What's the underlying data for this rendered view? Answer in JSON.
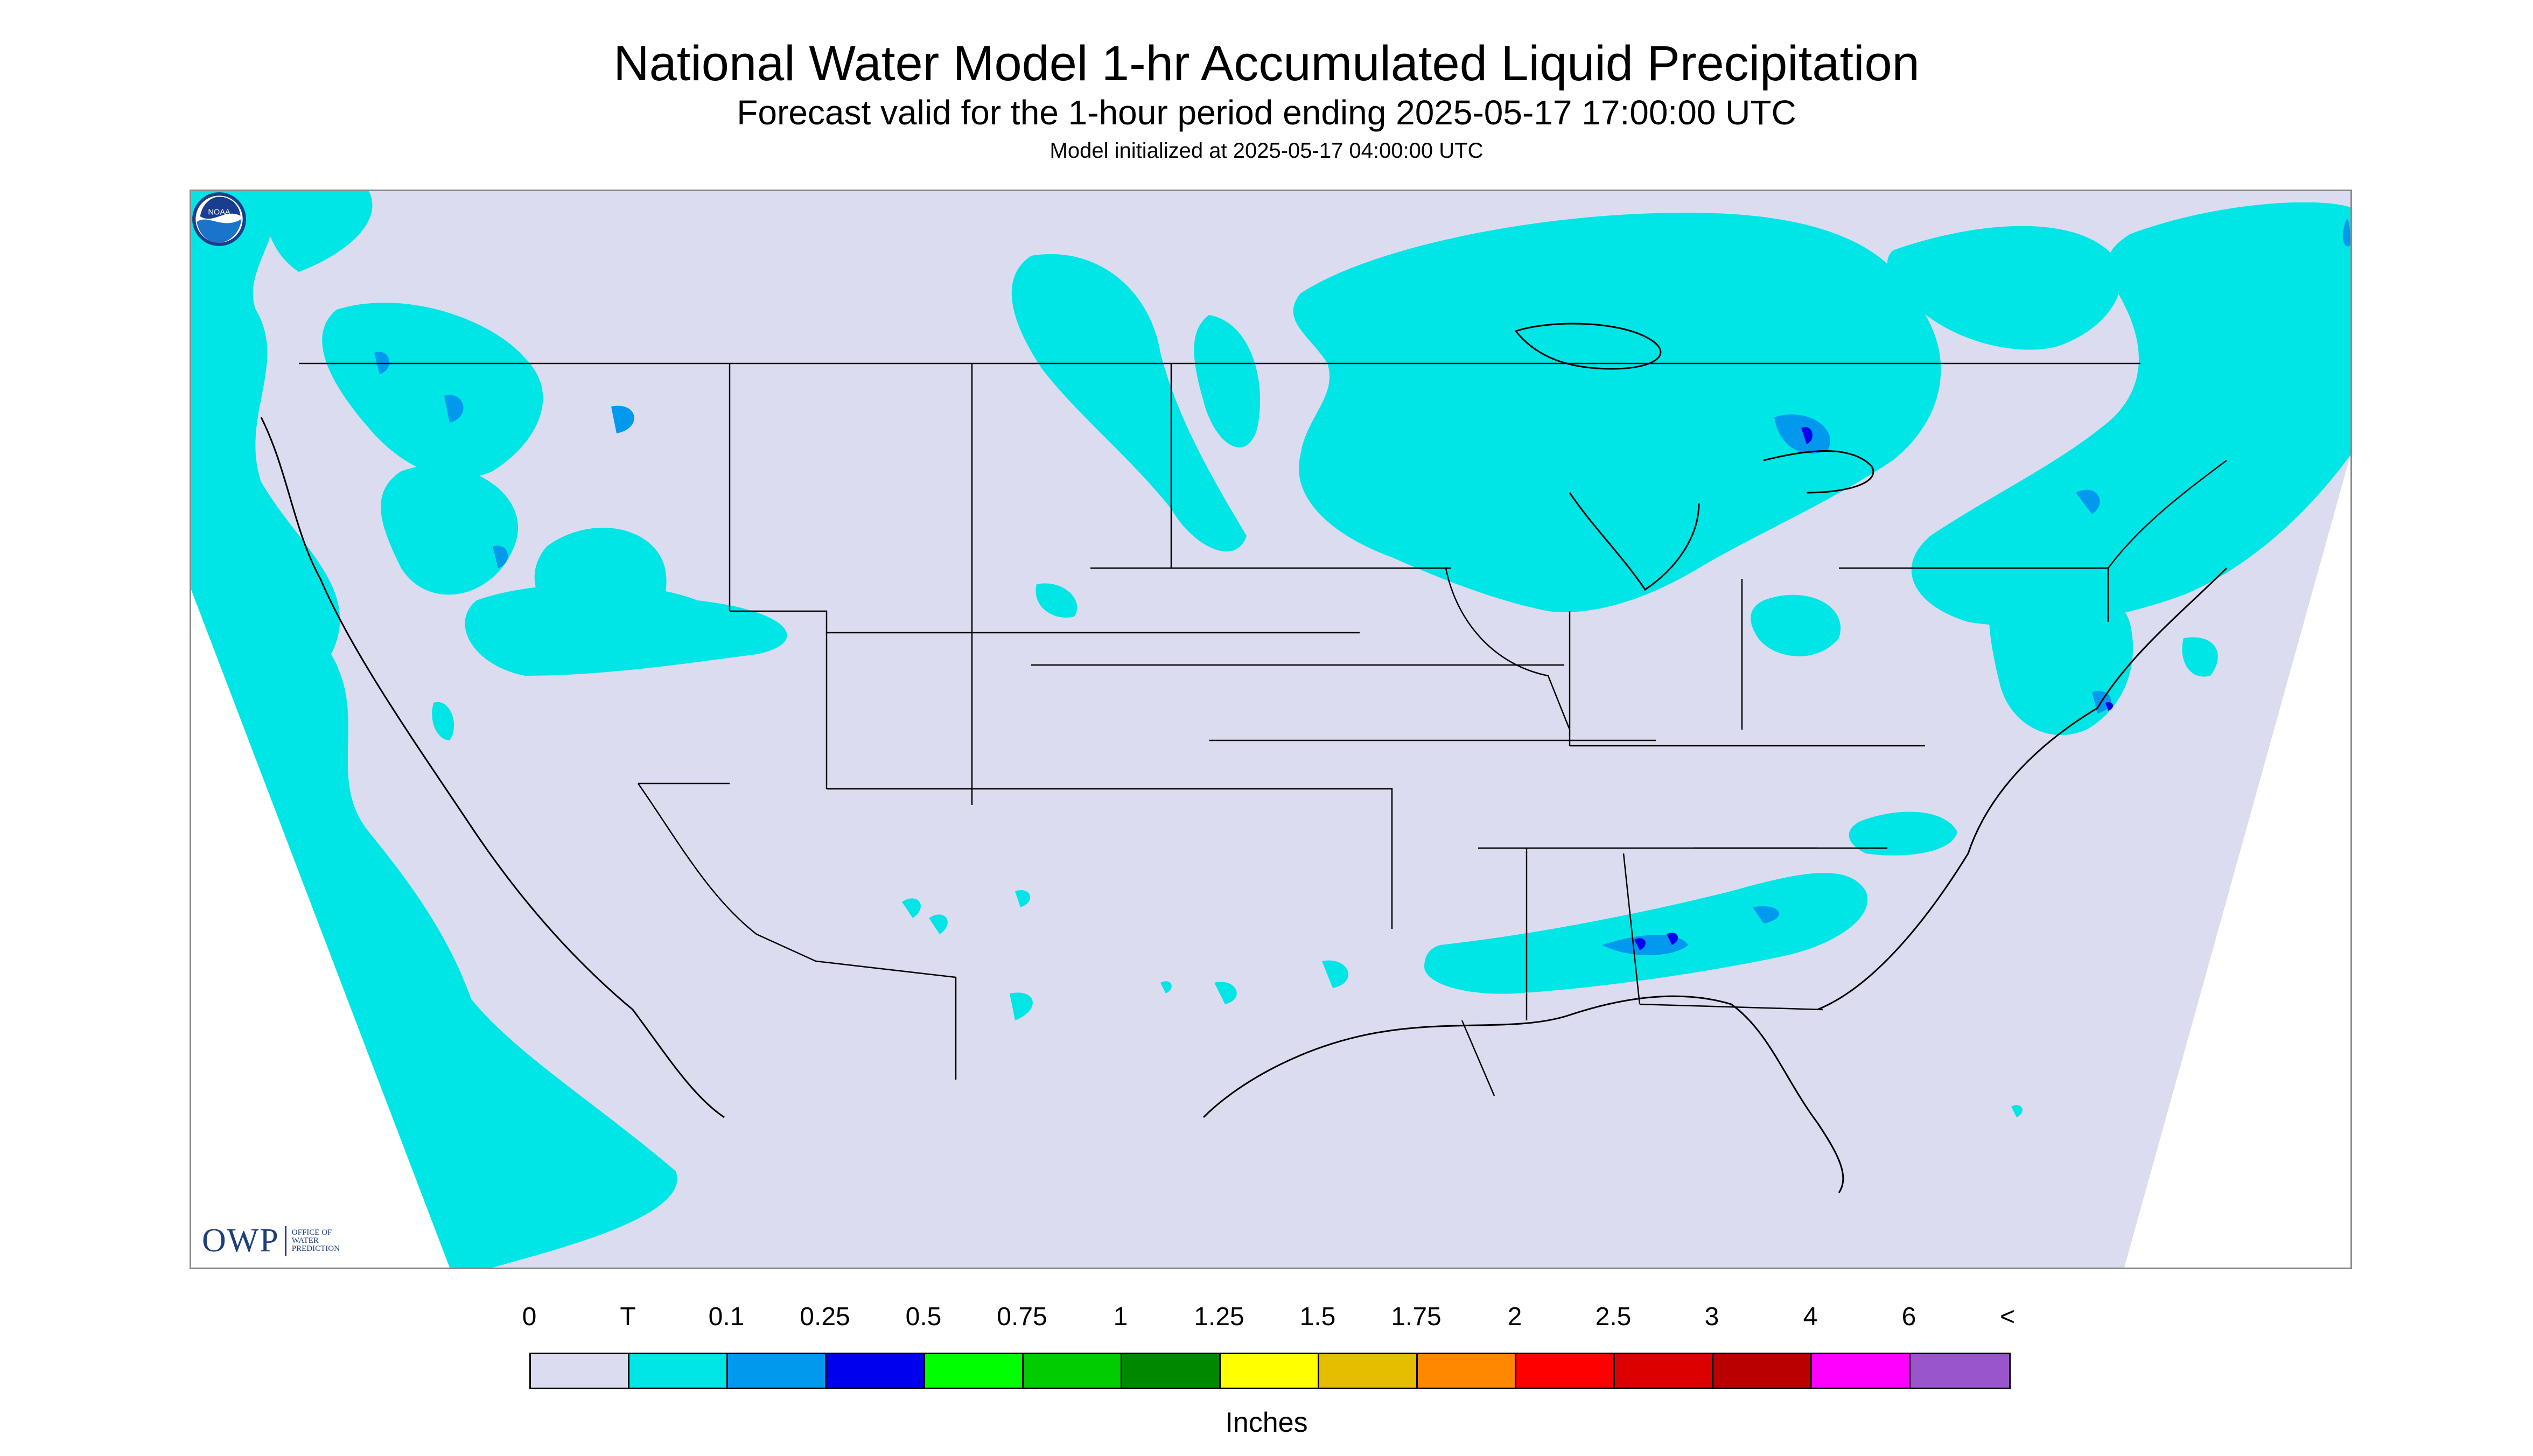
{
  "title": "National Water Model 1-hr Accumulated Liquid Precipitation",
  "subtitle": "Forecast valid for the 1-hour period ending 2025-05-17 17:00:00 UTC",
  "init_line": "Model initialized at 2025-05-17 04:00:00 UTC",
  "logo_owp": {
    "mark": "OWP",
    "line1": "OFFICE OF",
    "line2": "WATER",
    "line3": "PREDICTION"
  },
  "logo_noaa": "NOAA",
  "legend": {
    "labels": [
      "0",
      "T",
      "0.1",
      "0.25",
      "0.5",
      "0.75",
      "1",
      "1.25",
      "1.5",
      "1.75",
      "2",
      "2.5",
      "3",
      "4",
      "6",
      "<"
    ],
    "colors": [
      "#dcdcf0",
      "#00e6e6",
      "#0099ee",
      "#0000ee",
      "#00ff00",
      "#00cc00",
      "#008800",
      "#ffff00",
      "#e6be00",
      "#ff8800",
      "#ff0000",
      "#dd0000",
      "#bb0000",
      "#ff00ff",
      "#9955cc"
    ],
    "units": "Inches"
  },
  "colors": {
    "no_precip": "#dcdcf0",
    "trace": "#00e6e6",
    "light": "#0099ee",
    "moderate": "#0000ee",
    "border": "#000000"
  }
}
